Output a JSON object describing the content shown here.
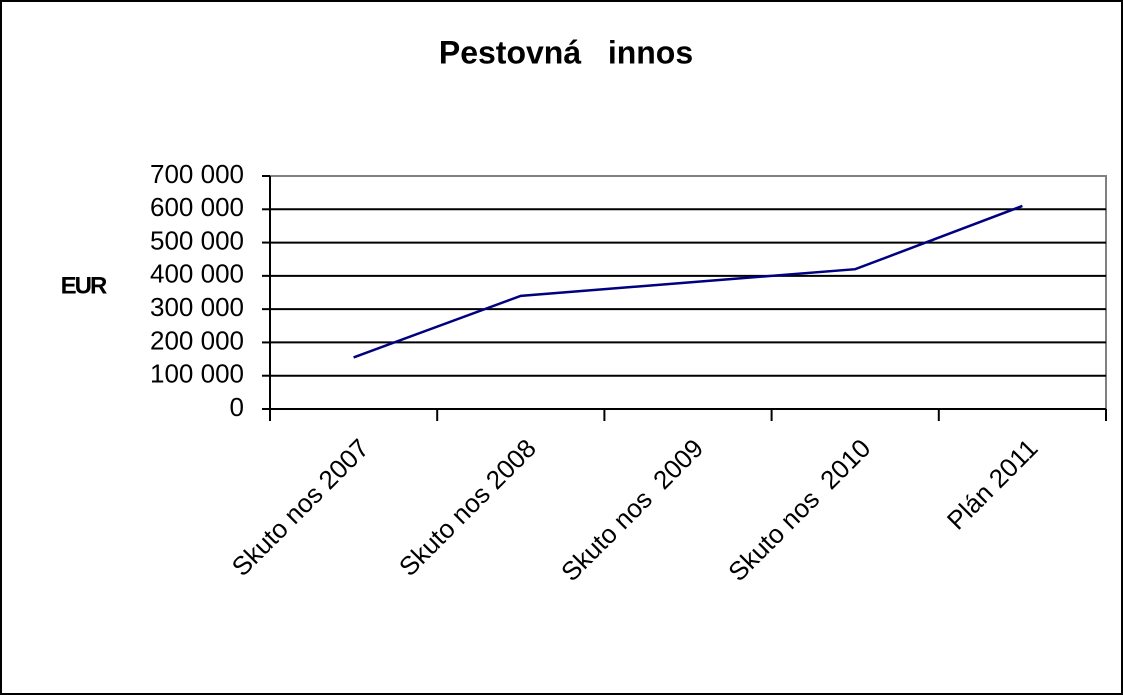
{
  "chart_data": {
    "type": "line",
    "title": "Pestovná   innos",
    "y_label": "EUR",
    "categories": [
      "Skuto nos 2007",
      "Skuto nos 2008",
      "Skuto nos  2009",
      "Skuto nos  2010",
      "Plán 2011"
    ],
    "values": [
      155000,
      340000,
      380000,
      420000,
      610000
    ],
    "color": "#000080",
    "ylim": [
      0,
      700000
    ],
    "yticks": [
      0,
      {
        "value": 100000,
        "label": "100 000"
      },
      {
        "value": 200000,
        "label": "200 000"
      },
      {
        "value": 300000,
        "label": "300 000"
      },
      {
        "value": 400000,
        "label": "400 000"
      },
      {
        "value": 500000,
        "label": "500 000"
      },
      {
        "value": 600000,
        "label": "600 000"
      },
      {
        "value": 700000,
        "label": "700 000"
      }
    ],
    "grid": true
  }
}
